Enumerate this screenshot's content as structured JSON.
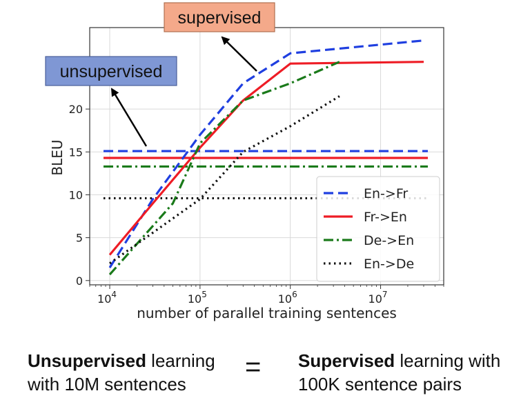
{
  "chart_data": {
    "type": "line",
    "xlabel": "number of parallel training sentences",
    "ylabel": "BLEU",
    "xscale": "log",
    "xlim": [
      6000,
      50000000
    ],
    "ylim": [
      -0.5,
      29.5
    ],
    "x_ticks": [
      {
        "value": 10000,
        "base": "10",
        "exp": "4"
      },
      {
        "value": 100000,
        "base": "10",
        "exp": "5"
      },
      {
        "value": 1000000,
        "base": "10",
        "exp": "6"
      },
      {
        "value": 10000000,
        "base": "10",
        "exp": "7"
      }
    ],
    "y_ticks": [
      0,
      5,
      10,
      15,
      20
    ],
    "grid": true,
    "legend_position": "lower-right",
    "series": [
      {
        "name": "En->Fr",
        "color": "#1f3fe0",
        "style": "dashed",
        "points": [
          [
            10000,
            1.5
          ],
          [
            30000,
            9.5
          ],
          [
            100000,
            17
          ],
          [
            300000,
            23
          ],
          [
            1000000,
            26.5
          ],
          [
            30000000,
            28
          ]
        ],
        "unsupervised_baseline": 15.1
      },
      {
        "name": "Fr->En",
        "color": "#ee1c25",
        "style": "solid",
        "points": [
          [
            10000,
            3
          ],
          [
            30000,
            9
          ],
          [
            100000,
            15.5
          ],
          [
            300000,
            21
          ],
          [
            1000000,
            25.3
          ],
          [
            30000000,
            25.5
          ]
        ],
        "unsupervised_baseline": 14.3
      },
      {
        "name": "De->En",
        "color": "#1a7a1a",
        "style": "dashdot",
        "points": [
          [
            10000,
            0.7
          ],
          [
            50000,
            9
          ],
          [
            100000,
            16
          ],
          [
            300000,
            21
          ],
          [
            1000000,
            23
          ],
          [
            3500000,
            25.5
          ]
        ],
        "unsupervised_baseline": 13.3
      },
      {
        "name": "En->De",
        "color": "#111111",
        "style": "dotted",
        "points": [
          [
            10000,
            2
          ],
          [
            100000,
            9.5
          ],
          [
            300000,
            15
          ],
          [
            1000000,
            18
          ],
          [
            3500000,
            21.5
          ]
        ],
        "unsupervised_baseline": 9.6
      }
    ],
    "annotations": [
      {
        "text": "supervised",
        "fill": "#f4a98a",
        "stroke": "#b07050"
      },
      {
        "text": "unsupervised",
        "fill": "#7f97d4",
        "stroke": "#4a5f9a"
      }
    ]
  },
  "caption_left": {
    "line1_bold": "Unsupervised",
    "line1_rest": " learning",
    "line2": "with 10M sentences"
  },
  "equals_sign": "=",
  "caption_right": {
    "line1_bold": "Supervised",
    "line1_rest": " learning with",
    "line2": "100K sentence pairs"
  }
}
